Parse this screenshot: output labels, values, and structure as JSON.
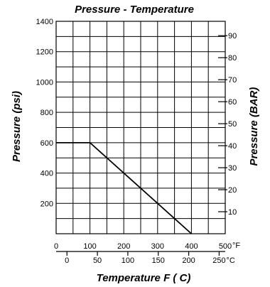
{
  "chart_data": {
    "type": "line",
    "title": "Pressure - Temperature",
    "ylabel_left": "Pressure (psi)",
    "ylabel_right": "Pressure (BAR)",
    "xlabel": "Temperature  F ( C)",
    "x_primary": {
      "unit_label": "°F",
      "lim": [
        0,
        500
      ],
      "ticks": [
        0,
        100,
        200,
        300,
        400,
        500
      ],
      "tick_labels": [
        "0",
        "100",
        "200",
        "300",
        "400",
        "500"
      ]
    },
    "x_secondary": {
      "unit_label": "°C",
      "ticks": [
        0,
        50,
        100,
        150,
        200,
        250
      ],
      "tick_labels": [
        "0",
        "50",
        "100",
        "150",
        "200",
        "250"
      ]
    },
    "y_left": {
      "lim": [
        0,
        1400
      ],
      "ticks": [
        200,
        400,
        600,
        800,
        1000,
        1200,
        1400
      ],
      "tick_labels": [
        "200",
        "400",
        "600",
        "800",
        "1000",
        "1200",
        "1400"
      ]
    },
    "y_right": {
      "ticks": [
        10,
        20,
        30,
        40,
        50,
        60,
        70,
        80,
        90
      ],
      "tick_labels": [
        "10",
        "20",
        "30",
        "40",
        "50",
        "60",
        "70",
        "80",
        "90"
      ]
    },
    "grid": true,
    "series": [
      {
        "x": [
          0,
          100,
          400
        ],
        "y": [
          600,
          600,
          0
        ]
      }
    ]
  }
}
